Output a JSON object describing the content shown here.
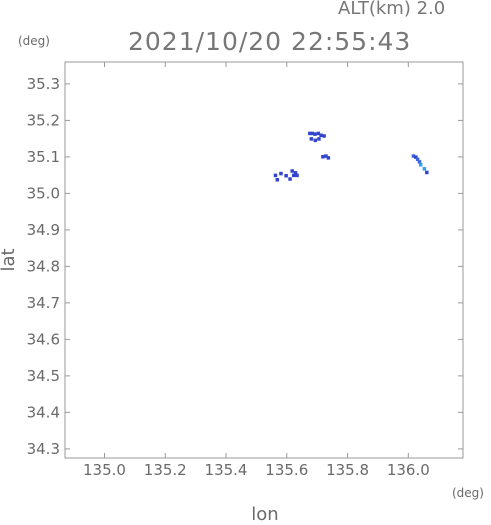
{
  "header": {
    "altitude_label": "ALT(km) 2.0",
    "datetime": "2021/10/20 22:55:43"
  },
  "chart_data": {
    "type": "scatter",
    "title": "",
    "xlabel": "lon",
    "ylabel": "lat",
    "x_unit": "(deg)",
    "y_unit": "(deg)",
    "xlim": [
      134.87,
      136.18
    ],
    "ylim": [
      34.275,
      35.36
    ],
    "xticks": [
      135.0,
      135.2,
      135.4,
      135.6,
      135.8,
      136.0
    ],
    "xtick_labels": [
      "135.0",
      "135.2",
      "135.4",
      "135.6",
      "135.8",
      "136.0"
    ],
    "yticks": [
      34.3,
      34.4,
      34.5,
      34.6,
      34.7,
      34.8,
      34.9,
      35.0,
      35.1,
      35.2,
      35.3
    ],
    "ytick_labels": [
      "34.3",
      "34.4",
      "34.5",
      "34.6",
      "34.7",
      "34.8",
      "34.9",
      "35.0",
      "35.1",
      "35.2",
      "35.3"
    ],
    "grid": false,
    "colors": {
      "dark_blue": "#3344cc",
      "mid_blue": "#3a66dd",
      "light_blue": "#33a0ee",
      "frame": "#9a9a9a"
    },
    "points": [
      {
        "lon": 135.675,
        "lat": 35.165,
        "color": "#3344cc"
      },
      {
        "lon": 135.683,
        "lat": 35.165,
        "color": "#3344cc"
      },
      {
        "lon": 135.692,
        "lat": 35.163,
        "color": "#3344cc"
      },
      {
        "lon": 135.703,
        "lat": 35.165,
        "color": "#3344cc"
      },
      {
        "lon": 135.712,
        "lat": 35.16,
        "color": "#3344cc"
      },
      {
        "lon": 135.722,
        "lat": 35.158,
        "color": "#3344cc"
      },
      {
        "lon": 135.68,
        "lat": 35.15,
        "color": "#3344cc"
      },
      {
        "lon": 135.693,
        "lat": 35.146,
        "color": "#3344cc"
      },
      {
        "lon": 135.705,
        "lat": 35.15,
        "color": "#3344cc"
      },
      {
        "lon": 135.718,
        "lat": 35.101,
        "color": "#3344cc"
      },
      {
        "lon": 135.728,
        "lat": 35.103,
        "color": "#3344cc"
      },
      {
        "lon": 135.736,
        "lat": 35.098,
        "color": "#3344cc"
      },
      {
        "lon": 135.562,
        "lat": 35.05,
        "color": "#3344cc"
      },
      {
        "lon": 135.568,
        "lat": 35.038,
        "color": "#3344cc"
      },
      {
        "lon": 135.58,
        "lat": 35.055,
        "color": "#3344cc"
      },
      {
        "lon": 135.597,
        "lat": 35.049,
        "color": "#3344cc"
      },
      {
        "lon": 135.61,
        "lat": 35.04,
        "color": "#3344cc"
      },
      {
        "lon": 135.617,
        "lat": 35.062,
        "color": "#3344cc"
      },
      {
        "lon": 135.622,
        "lat": 35.05,
        "color": "#3344cc"
      },
      {
        "lon": 135.628,
        "lat": 35.057,
        "color": "#3344cc"
      },
      {
        "lon": 135.633,
        "lat": 35.05,
        "color": "#3344cc"
      },
      {
        "lon": 136.016,
        "lat": 35.103,
        "color": "#3a66dd"
      },
      {
        "lon": 136.024,
        "lat": 35.1,
        "color": "#3344cc"
      },
      {
        "lon": 136.03,
        "lat": 35.094,
        "color": "#3a66dd"
      },
      {
        "lon": 136.036,
        "lat": 35.087,
        "color": "#3a66dd"
      },
      {
        "lon": 136.04,
        "lat": 35.079,
        "color": "#33a0ee"
      },
      {
        "lon": 136.052,
        "lat": 35.068,
        "color": "#33a0ee"
      },
      {
        "lon": 136.06,
        "lat": 35.058,
        "color": "#3344cc"
      }
    ]
  }
}
